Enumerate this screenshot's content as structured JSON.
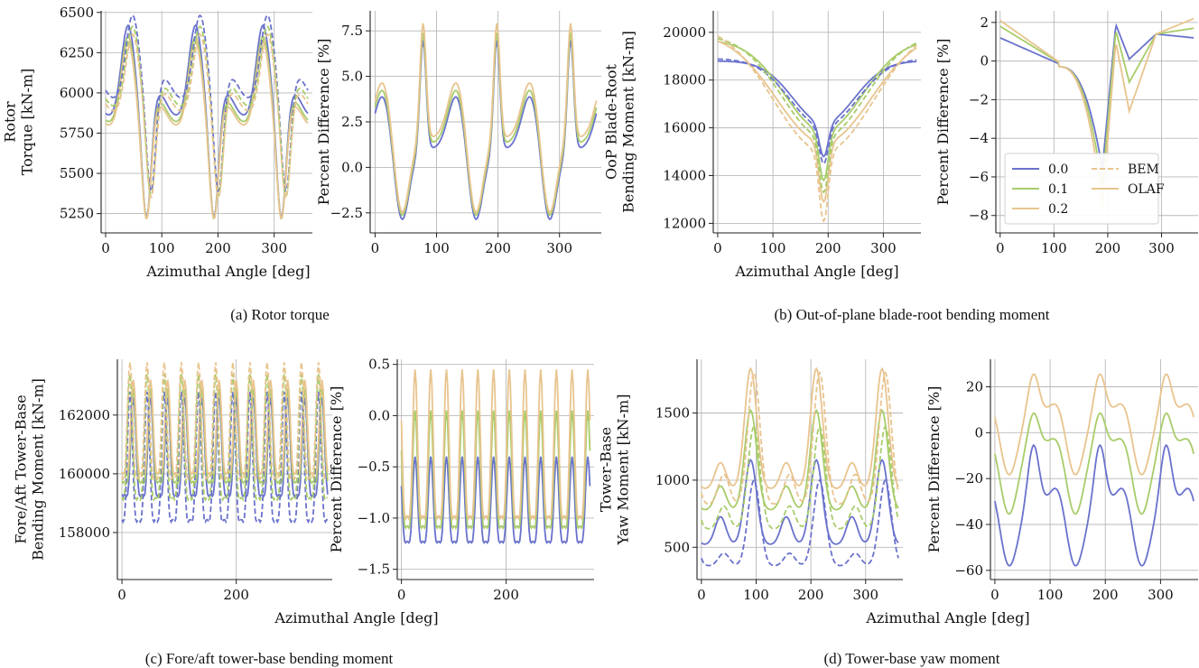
{
  "colors": {
    "0.0": "#6a72cc",
    "0.1": "#a8cc6a",
    "0.2": "#e8c48e"
  },
  "chart_data": [
    {
      "id": "a-left",
      "type": "line",
      "title": "",
      "xlabel": "",
      "ylabel": "Rotor|Torque [kN-m]",
      "xlim": [
        -8,
        368
      ],
      "ylim": [
        5130,
        6510
      ],
      "xticks": [
        0,
        100,
        200,
        300
      ],
      "yticks": [
        5250,
        5500,
        5750,
        6000,
        6250,
        6500
      ],
      "ytick_labels": [
        "5250",
        "5500",
        "5750",
        "6000",
        "6250",
        "6500"
      ],
      "grid": true,
      "shape": {
        "period": 120,
        "phase": 40,
        "kind": "torque"
      },
      "series": [
        {
          "name": "0.0",
          "color": "#6a72cc",
          "style": "solid",
          "mean": 5840,
          "amp": 610
        },
        {
          "name": "0.1",
          "color": "#a8cc6a",
          "style": "solid",
          "mean": 5800,
          "amp": 580
        },
        {
          "name": "0.2",
          "color": "#e8c48e",
          "style": "solid",
          "mean": 5780,
          "amp": 560
        },
        {
          "name": "0.0",
          "color": "#6a72cc",
          "style": "dashed",
          "mean": 5950,
          "amp": 560,
          "shift": -8
        },
        {
          "name": "0.1",
          "color": "#a8cc6a",
          "style": "dashed",
          "mean": 5900,
          "amp": 540,
          "shift": -8
        },
        {
          "name": "0.2",
          "color": "#e8c48e",
          "style": "dashed",
          "mean": 5870,
          "amp": 520,
          "shift": -8
        }
      ]
    },
    {
      "id": "a-right",
      "type": "line",
      "title": "",
      "xlabel": "",
      "ylabel": "Percent Difference [%]",
      "xlim": [
        -8,
        368
      ],
      "ylim": [
        -3.6,
        8.6
      ],
      "xticks": [
        0,
        100,
        200,
        300
      ],
      "yticks": [
        -2.5,
        0.0,
        2.5,
        5.0,
        7.5
      ],
      "ytick_labels": [
        "−2.5",
        "0.0",
        "2.5",
        "5.0",
        "7.5"
      ],
      "grid": true,
      "shape": {
        "period": 120,
        "phase": 78,
        "kind": "spike"
      },
      "series": [
        {
          "name": "0.0",
          "color": "#6a72cc",
          "style": "solid",
          "mean": 1.0,
          "amp": 5.5
        },
        {
          "name": "0.1",
          "color": "#a8cc6a",
          "style": "solid",
          "mean": 1.3,
          "amp": 5.6
        },
        {
          "name": "0.2",
          "color": "#e8c48e",
          "style": "solid",
          "mean": 1.6,
          "amp": 5.8
        }
      ]
    },
    {
      "id": "b-left",
      "type": "line",
      "title": "",
      "xlabel": "",
      "ylabel": "OoP Blade-Root|Bending Moment [kN-m]",
      "xlim": [
        -8,
        368
      ],
      "ylim": [
        11600,
        20900
      ],
      "xticks": [
        0,
        100,
        200,
        300
      ],
      "yticks": [
        12000,
        14000,
        16000,
        18000,
        20000
      ],
      "ytick_labels": [
        "12000",
        "14000",
        "16000",
        "18000",
        "20000"
      ],
      "grid": true,
      "shape": {
        "kind": "valley",
        "center": 192
      },
      "series": [
        {
          "name": "0.0",
          "color": "#6a72cc",
          "style": "solid",
          "top": 18800,
          "bottom": 14800,
          "width": 55
        },
        {
          "name": "0.1",
          "color": "#a8cc6a",
          "style": "solid",
          "top": 19700,
          "bottom": 13800,
          "width": 70
        },
        {
          "name": "0.2",
          "color": "#e8c48e",
          "style": "solid",
          "top": 20000,
          "bottom": 12900,
          "width": 85
        },
        {
          "name": "0.0",
          "color": "#6a72cc",
          "style": "dashed",
          "top": 18900,
          "bottom": 14500,
          "width": 60
        },
        {
          "name": "0.1",
          "color": "#a8cc6a",
          "style": "dashed",
          "top": 19900,
          "bottom": 13300,
          "width": 75
        },
        {
          "name": "0.2",
          "color": "#e8c48e",
          "style": "dashed",
          "top": 20400,
          "bottom": 12100,
          "width": 90
        }
      ]
    },
    {
      "id": "b-right",
      "type": "line",
      "title": "",
      "xlabel": "",
      "ylabel": "Percent Difference [%]",
      "xlim": [
        -8,
        368
      ],
      "ylim": [
        -8.9,
        2.6
      ],
      "xticks": [
        0,
        100,
        200,
        300
      ],
      "yticks": [
        -8,
        -6,
        -4,
        -2,
        0,
        2
      ],
      "ytick_labels": [
        "−8",
        "−6",
        "−4",
        "−2",
        "0",
        "2"
      ],
      "grid": true,
      "shape": {
        "kind": "dip",
        "center": 190
      },
      "series": [
        {
          "name": "0.0",
          "color": "#6a72cc",
          "style": "solid",
          "start": 1.2,
          "dip": -5.6,
          "after": 1.9,
          "trough": 0.1,
          "end": 1.2
        },
        {
          "name": "0.1",
          "color": "#a8cc6a",
          "style": "solid",
          "start": 1.8,
          "dip": -6.5,
          "after": 1.6,
          "trough": -1.1,
          "end": 1.7
        },
        {
          "name": "0.2",
          "color": "#e8c48e",
          "style": "solid",
          "start": 2.1,
          "dip": -7.5,
          "after": 1.0,
          "trough": -2.6,
          "end": 2.2
        }
      ],
      "legend": {
        "position": "lower-left",
        "entries": [
          {
            "label": "0.0",
            "color": "#6a72cc",
            "style": "solid"
          },
          {
            "label": "0.1",
            "color": "#a8cc6a",
            "style": "solid"
          },
          {
            "label": "0.2",
            "color": "#e8c48e",
            "style": "solid"
          },
          {
            "label": "BEM",
            "color": "#e8c48e",
            "style": "dashed"
          },
          {
            "label": "OLAF",
            "color": "#e8c48e",
            "style": "solid"
          }
        ]
      }
    },
    {
      "id": "c-left",
      "type": "line",
      "title": "",
      "xlabel": "",
      "ylabel": "Fore/Aft Tower-Base|Bending Moment [kN-m]",
      "xlim": [
        -8,
        368
      ],
      "ylim": [
        156400,
        163900
      ],
      "xticks": [
        0,
        200
      ],
      "yticks": [
        158000,
        160000,
        162000
      ],
      "ytick_labels": [
        "158000",
        "160000",
        "162000"
      ],
      "grid": true,
      "shape": {
        "period": 30,
        "phase": 20,
        "kind": "osc"
      },
      "series": [
        {
          "name": "0.0",
          "color": "#6a72cc",
          "style": "solid",
          "mean": 160400,
          "amp": 2200
        },
        {
          "name": "0.1",
          "color": "#a8cc6a",
          "style": "solid",
          "mean": 160800,
          "amp": 2100
        },
        {
          "name": "0.2",
          "color": "#e8c48e",
          "style": "solid",
          "mean": 161100,
          "amp": 2100
        },
        {
          "name": "0.0",
          "color": "#6a72cc",
          "style": "dashed",
          "mean": 159900,
          "amp": 2900,
          "shift": 6
        },
        {
          "name": "0.1",
          "color": "#a8cc6a",
          "style": "dashed",
          "mean": 160600,
          "amp": 2800,
          "shift": 6
        },
        {
          "name": "0.2",
          "color": "#e8c48e",
          "style": "dashed",
          "mean": 161200,
          "amp": 2600,
          "shift": 6
        }
      ]
    },
    {
      "id": "c-right",
      "type": "line",
      "title": "",
      "xlabel": "",
      "ylabel": "Percent Difference [%]",
      "xlim": [
        -8,
        368
      ],
      "ylim": [
        -1.6,
        0.55
      ],
      "xticks": [
        0,
        200
      ],
      "yticks": [
        -1.5,
        -1.0,
        -0.5,
        0.0,
        0.5
      ],
      "ytick_labels": [
        "−1.5",
        "−1.0",
        "−0.5",
        "0.0",
        "0.5"
      ],
      "grid": true,
      "shape": {
        "period": 30,
        "phase": 26,
        "kind": "osc"
      },
      "series": [
        {
          "name": "0.0",
          "color": "#6a72cc",
          "style": "solid",
          "mean": -0.95,
          "amp": 0.55
        },
        {
          "name": "0.1",
          "color": "#a8cc6a",
          "style": "solid",
          "mean": -0.7,
          "amp": 0.75
        },
        {
          "name": "0.2",
          "color": "#e8c48e",
          "style": "solid",
          "mean": -0.5,
          "amp": 0.95
        }
      ]
    },
    {
      "id": "d-left",
      "type": "line",
      "title": "",
      "xlabel": "",
      "ylabel": "Tower-Base|Yaw Moment [kN-m]",
      "xlim": [
        -8,
        368
      ],
      "ylim": [
        260,
        1900
      ],
      "xticks": [
        0,
        100,
        200,
        300
      ],
      "yticks": [
        500,
        1000,
        1500
      ],
      "ytick_labels": [
        "500",
        "1000",
        "1500"
      ],
      "grid": true,
      "shape": {
        "period": 120,
        "phase": 90,
        "kind": "yaw"
      },
      "series": [
        {
          "name": "0.0",
          "color": "#6a72cc",
          "style": "solid",
          "base": 430,
          "peak": 1150,
          "mid": 780
        },
        {
          "name": "0.1",
          "color": "#a8cc6a",
          "style": "solid",
          "base": 700,
          "peak": 1520,
          "mid": 1000
        },
        {
          "name": "0.2",
          "color": "#e8c48e",
          "style": "solid",
          "base": 850,
          "peak": 1830,
          "mid": 1180
        },
        {
          "name": "0.0",
          "color": "#6a72cc",
          "style": "dashed",
          "base": 320,
          "peak": 1000,
          "mid": 480,
          "shift": -6
        },
        {
          "name": "0.1",
          "color": "#a8cc6a",
          "style": "dashed",
          "base": 560,
          "peak": 1400,
          "mid": 850,
          "shift": -6
        },
        {
          "name": "0.2",
          "color": "#e8c48e",
          "style": "dashed",
          "base": 720,
          "peak": 1800,
          "mid": 1100,
          "shift": -6
        }
      ]
    },
    {
      "id": "d-right",
      "type": "line",
      "title": "",
      "xlabel": "",
      "ylabel": "Percent Difference [%]",
      "xlim": [
        -8,
        368
      ],
      "ylim": [
        -64,
        32
      ],
      "xticks": [
        0,
        100,
        200,
        300
      ],
      "yticks": [
        -60,
        -40,
        -20,
        0,
        20
      ],
      "ytick_labels": [
        "−60",
        "−40",
        "−20",
        "0",
        "20"
      ],
      "grid": true,
      "shape": {
        "period": 120,
        "phase": 70,
        "kind": "pct-yaw"
      },
      "series": [
        {
          "name": "0.0",
          "color": "#6a72cc",
          "style": "solid",
          "low": -59,
          "high": -5,
          "mid": -32
        },
        {
          "name": "0.1",
          "color": "#a8cc6a",
          "style": "solid",
          "low": -36,
          "high": 9,
          "mid": -6
        },
        {
          "name": "0.2",
          "color": "#e8c48e",
          "style": "solid",
          "low": -19,
          "high": 26,
          "mid": 8
        }
      ]
    }
  ],
  "shared_xlabels": {
    "a": "Azimuthal Angle [deg]",
    "b": "Azimuthal Angle [deg]",
    "c": "Azimuthal Angle [deg]",
    "d": "Azimuthal Angle [deg]"
  },
  "captions": {
    "a": "(a)  Rotor torque",
    "b": "(b)  Out-of-plane blade-root bending moment",
    "c": "(c)  Fore/aft tower-base bending moment",
    "d": "(d)  Tower-base yaw moment"
  }
}
